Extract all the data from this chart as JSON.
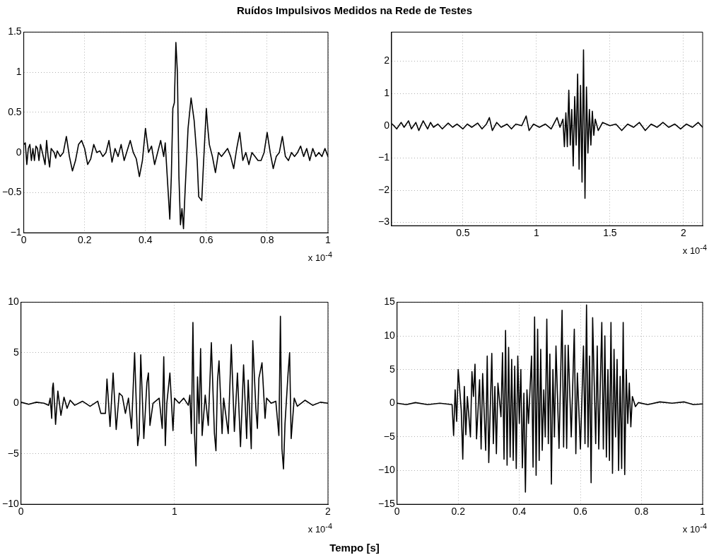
{
  "chart_data": [
    {
      "type": "line",
      "title": "Ruídos Impulsivos Medidos na Rede de Testes",
      "color": "#000000",
      "grid": true,
      "xlim": [
        0,
        1
      ],
      "xticks": [
        0,
        0.2,
        0.4,
        0.6,
        0.8,
        1
      ],
      "ylim": [
        -1,
        1.5
      ],
      "yticks": [
        -1,
        -0.5,
        0,
        0.5,
        1,
        1.5
      ],
      "annotations": [
        "x 10$^{-4}$"
      ],
      "x": [
        0,
        0.005,
        0.01,
        0.015,
        0.02,
        0.025,
        0.03,
        0.035,
        0.04,
        0.045,
        0.05,
        0.055,
        0.06,
        0.07,
        0.075,
        0.08,
        0.085,
        0.09,
        0.1,
        0.105,
        0.11,
        0.12,
        0.13,
        0.14,
        0.15,
        0.16,
        0.17,
        0.18,
        0.19,
        0.2,
        0.21,
        0.22,
        0.23,
        0.24,
        0.25,
        0.26,
        0.27,
        0.28,
        0.29,
        0.3,
        0.31,
        0.32,
        0.33,
        0.35,
        0.36,
        0.37,
        0.38,
        0.39,
        0.4,
        0.41,
        0.42,
        0.43,
        0.45,
        0.46,
        0.465,
        0.47,
        0.48,
        0.485,
        0.49,
        0.495,
        0.5,
        0.505,
        0.51,
        0.515,
        0.52,
        0.525,
        0.53,
        0.54,
        0.55,
        0.56,
        0.57,
        0.575,
        0.585,
        0.59,
        0.6,
        0.605,
        0.61,
        0.62,
        0.63,
        0.64,
        0.65,
        0.66,
        0.67,
        0.68,
        0.69,
        0.7,
        0.71,
        0.72,
        0.73,
        0.74,
        0.75,
        0.76,
        0.77,
        0.78,
        0.79,
        0.8,
        0.81,
        0.82,
        0.83,
        0.84,
        0.85,
        0.86,
        0.87,
        0.88,
        0.89,
        0.9,
        0.91,
        0.92,
        0.93,
        0.94,
        0.95,
        0.96,
        0.97,
        0.98,
        0.99,
        1.0
      ],
      "values": [
        0.1,
        0.12,
        -0.15,
        0.05,
        0.1,
        -0.1,
        0.05,
        -0.1,
        0.08,
        0.05,
        -0.1,
        0.1,
        0.02,
        -0.15,
        0.15,
        -0.05,
        -0.18,
        0.05,
        0.0,
        -0.07,
        0.02,
        -0.05,
        0.0,
        0.2,
        -0.05,
        -0.23,
        -0.1,
        0.1,
        0.15,
        0.05,
        -0.15,
        -0.08,
        0.1,
        0.0,
        0.02,
        -0.05,
        0.0,
        0.15,
        -0.12,
        0.05,
        -0.05,
        0.1,
        -0.1,
        0.15,
        0.0,
        -0.08,
        -0.3,
        -0.1,
        0.3,
        0.0,
        0.08,
        -0.15,
        0.15,
        -0.05,
        0.12,
        -0.2,
        -0.83,
        -0.3,
        0.55,
        0.62,
        1.37,
        1.0,
        -0.3,
        -0.9,
        -0.7,
        -0.95,
        -0.5,
        0.3,
        0.68,
        0.4,
        -0.1,
        -0.55,
        -0.6,
        -0.2,
        0.55,
        0.3,
        0.1,
        -0.05,
        -0.25,
        0.0,
        -0.05,
        0.0,
        0.05,
        -0.05,
        -0.2,
        0.05,
        0.25,
        -0.1,
        0.0,
        -0.15,
        0.0,
        -0.05,
        -0.1,
        -0.1,
        0.0,
        0.25,
        0.0,
        -0.2,
        -0.05,
        0.0,
        0.2,
        -0.05,
        -0.1,
        0.0,
        -0.05,
        0.0,
        0.08,
        -0.05,
        0.05,
        -0.1,
        0.05,
        -0.05,
        0.0,
        -0.05,
        0.05,
        -0.05
      ]
    },
    {
      "type": "line",
      "color": "#000000",
      "grid": true,
      "xlim": [
        0.015,
        2.13
      ],
      "xticks": [
        0.5,
        1,
        1.5,
        2
      ],
      "ylim": [
        -3.1,
        2.9
      ],
      "yticks": [
        -3,
        -2,
        -1,
        0,
        1,
        2
      ],
      "annotations": [
        "x 10$^{-4}$"
      ],
      "x": [
        0.02,
        0.05,
        0.08,
        0.1,
        0.13,
        0.15,
        0.18,
        0.2,
        0.23,
        0.26,
        0.28,
        0.3,
        0.33,
        0.36,
        0.4,
        0.43,
        0.46,
        0.5,
        0.53,
        0.56,
        0.6,
        0.63,
        0.66,
        0.68,
        0.7,
        0.73,
        0.76,
        0.8,
        0.83,
        0.86,
        0.9,
        0.93,
        0.95,
        0.98,
        1.02,
        1.06,
        1.1,
        1.14,
        1.16,
        1.18,
        1.19,
        1.2,
        1.21,
        1.22,
        1.23,
        1.24,
        1.25,
        1.26,
        1.27,
        1.28,
        1.29,
        1.3,
        1.31,
        1.32,
        1.33,
        1.34,
        1.35,
        1.36,
        1.37,
        1.38,
        1.39,
        1.4,
        1.42,
        1.45,
        1.5,
        1.54,
        1.58,
        1.62,
        1.66,
        1.7,
        1.74,
        1.78,
        1.82,
        1.86,
        1.9,
        1.94,
        1.98,
        2.02,
        2.06,
        2.1,
        2.13
      ],
      "values": [
        0.05,
        -0.1,
        0.1,
        -0.05,
        0.15,
        -0.1,
        0.1,
        -0.15,
        0.15,
        -0.1,
        0.1,
        -0.05,
        0.05,
        -0.1,
        0.08,
        -0.05,
        0.05,
        -0.1,
        0.05,
        -0.05,
        0.08,
        -0.1,
        0.05,
        0.25,
        -0.15,
        0.1,
        -0.05,
        0.05,
        -0.1,
        0.05,
        0.0,
        0.3,
        -0.15,
        0.05,
        -0.05,
        0.05,
        -0.1,
        0.25,
        -0.05,
        0.2,
        -0.65,
        0.4,
        -0.65,
        1.1,
        -0.6,
        0.5,
        -1.25,
        0.9,
        -0.6,
        1.6,
        -1.35,
        1.25,
        -1.75,
        2.35,
        -2.25,
        1.2,
        -0.85,
        0.5,
        -0.6,
        0.45,
        -0.3,
        0.2,
        -0.15,
        0.1,
        0.0,
        0.05,
        -0.15,
        0.05,
        -0.05,
        0.1,
        -0.15,
        0.05,
        -0.05,
        0.1,
        -0.05,
        0.05,
        -0.1,
        0.05,
        -0.05,
        0.1,
        -0.05
      ]
    },
    {
      "type": "line",
      "color": "#000000",
      "grid": true,
      "xlim": [
        0,
        2
      ],
      "xticks": [
        0,
        1,
        2
      ],
      "ylim": [
        -10,
        10
      ],
      "yticks": [
        -10,
        -5,
        0,
        5,
        10
      ],
      "annotations": [
        "x 10$^{-4}$"
      ],
      "x": [
        0,
        0.05,
        0.1,
        0.15,
        0.18,
        0.19,
        0.2,
        0.205,
        0.21,
        0.22,
        0.225,
        0.24,
        0.26,
        0.28,
        0.3,
        0.32,
        0.35,
        0.4,
        0.45,
        0.5,
        0.52,
        0.55,
        0.56,
        0.58,
        0.6,
        0.62,
        0.64,
        0.66,
        0.68,
        0.7,
        0.72,
        0.74,
        0.76,
        0.77,
        0.78,
        0.8,
        0.82,
        0.83,
        0.84,
        0.86,
        0.9,
        0.92,
        0.93,
        0.94,
        0.95,
        0.97,
        0.99,
        1.0,
        1.03,
        1.06,
        1.09,
        1.1,
        1.11,
        1.12,
        1.13,
        1.14,
        1.15,
        1.16,
        1.17,
        1.18,
        1.2,
        1.22,
        1.24,
        1.26,
        1.27,
        1.28,
        1.29,
        1.31,
        1.32,
        1.35,
        1.37,
        1.39,
        1.41,
        1.43,
        1.45,
        1.47,
        1.48,
        1.5,
        1.51,
        1.53,
        1.54,
        1.55,
        1.57,
        1.59,
        1.6,
        1.63,
        1.66,
        1.68,
        1.69,
        1.7,
        1.71,
        1.72,
        1.74,
        1.75,
        1.76,
        1.78,
        1.8,
        1.85,
        1.9,
        1.95,
        2.0
      ],
      "values": [
        0.1,
        -0.1,
        0.1,
        0.0,
        -0.2,
        0.5,
        -1.5,
        1.5,
        2.0,
        -0.5,
        -2.1,
        1.2,
        -1.2,
        0.6,
        -0.5,
        0.3,
        -0.2,
        0.2,
        -0.3,
        0.2,
        -1.0,
        -1.0,
        2.4,
        -2.3,
        3.0,
        -2.6,
        1.0,
        0.7,
        -1.0,
        0.5,
        -2.5,
        5.0,
        -4.2,
        -3.0,
        4.8,
        -3.5,
        2.0,
        3.0,
        -2.2,
        0.0,
        0.5,
        -2.5,
        4.6,
        -4.2,
        0.0,
        3.0,
        -2.7,
        0.5,
        0.0,
        0.5,
        -0.2,
        0.8,
        -3.0,
        8.0,
        -3.0,
        -6.2,
        2.6,
        -2.0,
        5.4,
        -3.2,
        0.8,
        -2.2,
        6.0,
        -3.0,
        -4.7,
        2.2,
        4.2,
        -3.0,
        0.5,
        -3.0,
        5.8,
        -2.8,
        3.0,
        -4.3,
        3.8,
        -3.5,
        2.3,
        -4.5,
        6.2,
        -0.5,
        -2.5,
        2.5,
        4.0,
        -1.5,
        0.5,
        0.0,
        0.2,
        -3.2,
        8.6,
        -4.5,
        -6.5,
        -2.0,
        3.0,
        5.0,
        -3.5,
        0.5,
        -0.3,
        0.3,
        -0.2,
        0.1,
        0.0
      ]
    },
    {
      "type": "line",
      "xlabel": "Tempo [s]",
      "color": "#000000",
      "grid": true,
      "xlim": [
        0,
        1
      ],
      "xticks": [
        0,
        0.2,
        0.4,
        0.6,
        0.8,
        1
      ],
      "ylim": [
        -15,
        15
      ],
      "yticks": [
        -15,
        -10,
        -5,
        0,
        5,
        10,
        15
      ],
      "annotations": [
        "x 10$^{-4}$"
      ],
      "x": [
        0,
        0.03,
        0.06,
        0.1,
        0.14,
        0.18,
        0.185,
        0.19,
        0.195,
        0.2,
        0.21,
        0.215,
        0.22,
        0.225,
        0.23,
        0.24,
        0.245,
        0.25,
        0.255,
        0.26,
        0.27,
        0.275,
        0.28,
        0.29,
        0.295,
        0.3,
        0.31,
        0.315,
        0.32,
        0.325,
        0.33,
        0.34,
        0.345,
        0.35,
        0.355,
        0.36,
        0.365,
        0.37,
        0.375,
        0.38,
        0.385,
        0.39,
        0.395,
        0.4,
        0.405,
        0.41,
        0.415,
        0.42,
        0.425,
        0.43,
        0.44,
        0.445,
        0.45,
        0.455,
        0.46,
        0.465,
        0.47,
        0.475,
        0.48,
        0.485,
        0.49,
        0.495,
        0.5,
        0.505,
        0.51,
        0.515,
        0.52,
        0.53,
        0.54,
        0.545,
        0.55,
        0.555,
        0.56,
        0.57,
        0.58,
        0.585,
        0.59,
        0.6,
        0.61,
        0.615,
        0.62,
        0.625,
        0.63,
        0.635,
        0.64,
        0.65,
        0.655,
        0.66,
        0.67,
        0.675,
        0.68,
        0.685,
        0.69,
        0.695,
        0.7,
        0.705,
        0.71,
        0.715,
        0.72,
        0.725,
        0.73,
        0.735,
        0.74,
        0.745,
        0.75,
        0.755,
        0.76,
        0.765,
        0.77,
        0.78,
        0.79,
        0.82,
        0.86,
        0.9,
        0.94,
        0.97,
        1.0
      ],
      "values": [
        0.0,
        -0.2,
        0.1,
        -0.2,
        0.0,
        -0.2,
        -4.8,
        2.0,
        -2.7,
        5.0,
        -1.0,
        -8.3,
        2.5,
        -4.7,
        1.0,
        -5.0,
        4.7,
        1.0,
        5.8,
        -5.3,
        3.5,
        -6.8,
        4.4,
        -7.0,
        7.0,
        -8.8,
        7.4,
        -6.0,
        2.5,
        -7.5,
        3.0,
        -2.0,
        7.5,
        -8.3,
        10.8,
        -9.2,
        8.3,
        -8.0,
        6.5,
        -8.5,
        5.5,
        -9.7,
        7.0,
        -3.0,
        5.0,
        -9.6,
        1.5,
        -13.2,
        2.0,
        -3.0,
        7.0,
        -9.5,
        12.8,
        -10.7,
        11.0,
        -8.5,
        8.0,
        -7.0,
        2.0,
        -5.0,
        12.5,
        -6.0,
        7.3,
        -12.0,
        5.0,
        -5.0,
        8.5,
        -6.7,
        13.8,
        -6.5,
        8.6,
        -6.7,
        8.6,
        -5.0,
        11.0,
        -7.5,
        4.5,
        -6.8,
        8.5,
        -6.0,
        14.6,
        -6.5,
        7.0,
        -11.8,
        12.7,
        -6.0,
        8.5,
        -6.8,
        12.0,
        -6.8,
        10.0,
        -8.0,
        5.0,
        -8.5,
        12.0,
        -10.4,
        8.0,
        -5.0,
        6.5,
        -10.0,
        4.0,
        -9.7,
        12.0,
        -10.6,
        5.0,
        -3.0,
        3.0,
        -3.5,
        1.0,
        -0.5,
        0.1,
        -0.2,
        0.2,
        0.0,
        0.2,
        -0.2,
        -0.1
      ]
    }
  ]
}
